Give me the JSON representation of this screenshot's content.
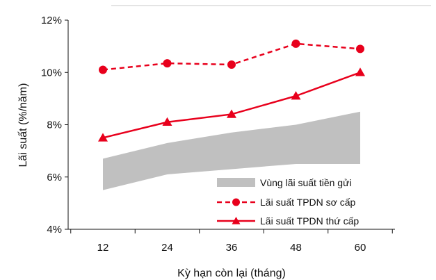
{
  "chart_data": {
    "type": "line",
    "xlabel": "Kỳ hạn còn lại (tháng)",
    "ylabel": "Lãi suất (%/năm)",
    "x": [
      12,
      24,
      36,
      48,
      60
    ],
    "x_tick_labels": [
      "12",
      "24",
      "36",
      "48",
      "60"
    ],
    "ylim": [
      4,
      12
    ],
    "y_ticks": [
      4,
      6,
      8,
      10,
      12
    ],
    "y_tick_labels": [
      "4%",
      "6%",
      "8%",
      "10%",
      "12%"
    ],
    "grid": false,
    "legend_position": "bottom-right",
    "series": [
      {
        "name": "Vùng lãi suất tiền gửi",
        "kind": "band",
        "lower": [
          5.5,
          6.1,
          6.3,
          6.5,
          6.5
        ],
        "upper": [
          6.7,
          7.3,
          7.7,
          8.0,
          8.5
        ],
        "color": "#c0c0c0"
      },
      {
        "name": "Lãi suất TPDN sơ cấp",
        "kind": "line",
        "style": "dashed",
        "marker": "circle",
        "values": [
          10.1,
          10.35,
          10.3,
          11.1,
          10.9
        ],
        "color": "#e8001c"
      },
      {
        "name": "Lãi suất TPDN thứ cấp",
        "kind": "line",
        "style": "solid",
        "marker": "triangle",
        "values": [
          7.5,
          8.1,
          8.4,
          9.1,
          10.0
        ],
        "color": "#e8001c"
      }
    ]
  }
}
